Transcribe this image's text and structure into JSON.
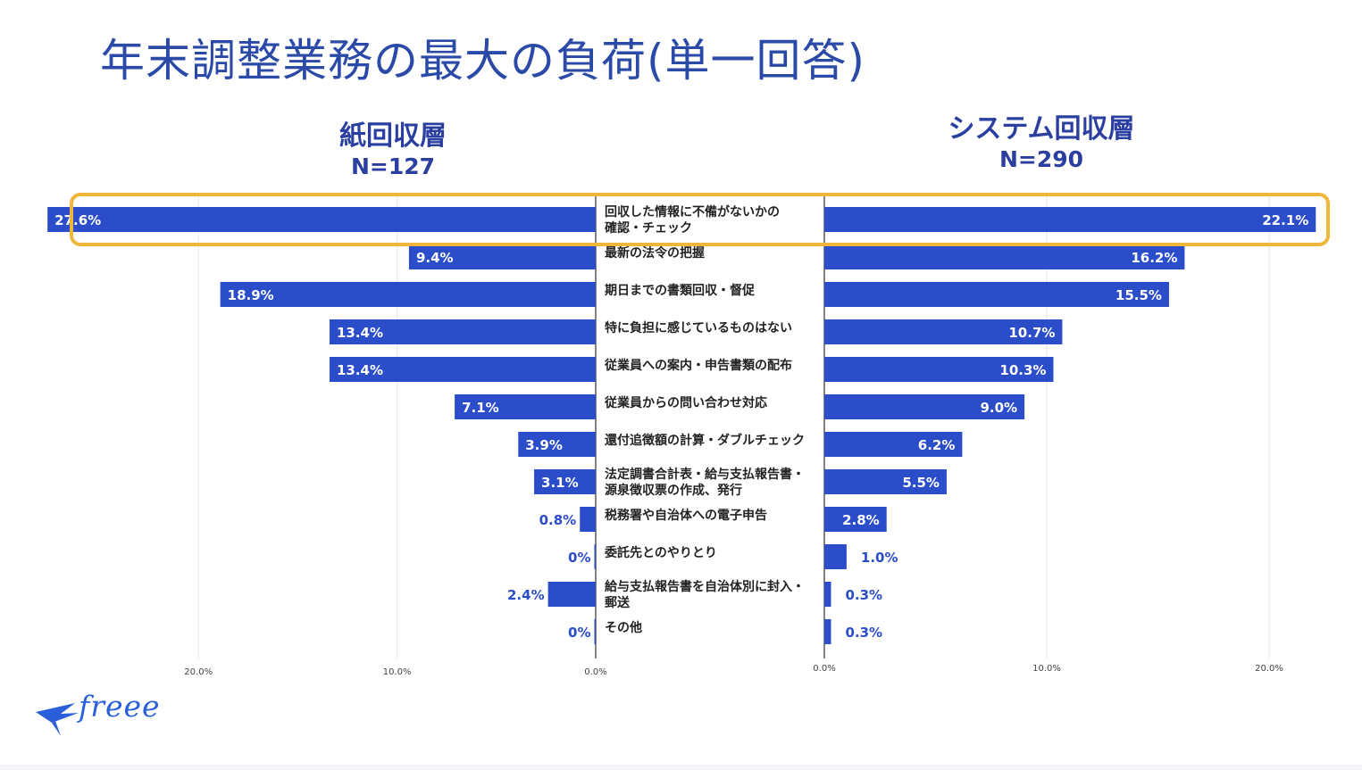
{
  "title": "年末調整業務の最大の負荷(単一回答)",
  "colors": {
    "bar": "#2b4dc9",
    "title": "#2b4aa8",
    "highlight": "#f0b63a",
    "grid": "#e6e6e6"
  },
  "brand": {
    "logo_text": "freee",
    "logo_icon": "bird-icon"
  },
  "chart_data": [
    {
      "type": "bar",
      "orientation": "horizontal-mirrored",
      "group": "紙回収層",
      "n_label": "N=127",
      "xlim": [
        0,
        30
      ],
      "ticks": [
        "0.0%",
        "10.0%",
        "20.0%"
      ],
      "categories": [
        "回収した情報に不備がないかの確認・チェック",
        "最新の法令の把握",
        "期日までの書類回収・督促",
        "特に負担に感じているものはない",
        "従業員への案内・申告書類の配布",
        "従業員からの問い合わせ対応",
        "還付追徴額の計算・ダブルチェック",
        "法定調書合計表・給与支払報告書・源泉徴収票の作成、発行",
        "税務署や自治体への電子申告",
        "委託先とのやりとり",
        "給与支払報告書を自治体別に封入・郵送",
        "その他"
      ],
      "values": [
        27.6,
        9.4,
        18.9,
        13.4,
        13.4,
        7.1,
        3.9,
        3.1,
        0.8,
        0,
        2.4,
        0
      ],
      "labels": [
        "27.6%",
        "9.4%",
        "18.9%",
        "13.4%",
        "13.4%",
        "7.1%",
        "3.9%",
        "3.1%",
        "0.8%",
        "0%",
        "2.4%",
        "0%"
      ]
    },
    {
      "type": "bar",
      "orientation": "horizontal",
      "group": "システム回収層",
      "n_label": "N=290",
      "xlim": [
        0,
        22.1
      ],
      "ticks": [
        "0.0%",
        "10.0%",
        "20.0%"
      ],
      "values": [
        22.1,
        16.2,
        15.5,
        10.7,
        10.3,
        9.0,
        6.2,
        5.5,
        2.8,
        1.0,
        0.3,
        0.3
      ],
      "labels": [
        "22.1%",
        "16.2%",
        "15.5%",
        "10.7%",
        "10.3%",
        "9.0%",
        "6.2%",
        "5.5%",
        "2.8%",
        "1.0%",
        "0.3%",
        "0.3%"
      ]
    }
  ],
  "category_lines": [
    [
      "回収した情報に不備がないかの",
      "確認・チェック"
    ],
    [
      "最新の法令の把握"
    ],
    [
      "期日までの書類回収・督促"
    ],
    [
      "特に負担に感じているものはない"
    ],
    [
      "従業員への案内・申告書類の配布"
    ],
    [
      "従業員からの問い合わせ対応"
    ],
    [
      "還付追徴額の計算・ダブルチェック"
    ],
    [
      "法定調書合計表・給与支払報告書・",
      "源泉徴収票の作成、発行"
    ],
    [
      "税務署や自治体への電子申告"
    ],
    [
      "委託先とのやりとり"
    ],
    [
      "給与支払報告書を自治体別に封入・",
      "郵送"
    ],
    [
      "その他"
    ]
  ],
  "highlight_category_index": 0
}
